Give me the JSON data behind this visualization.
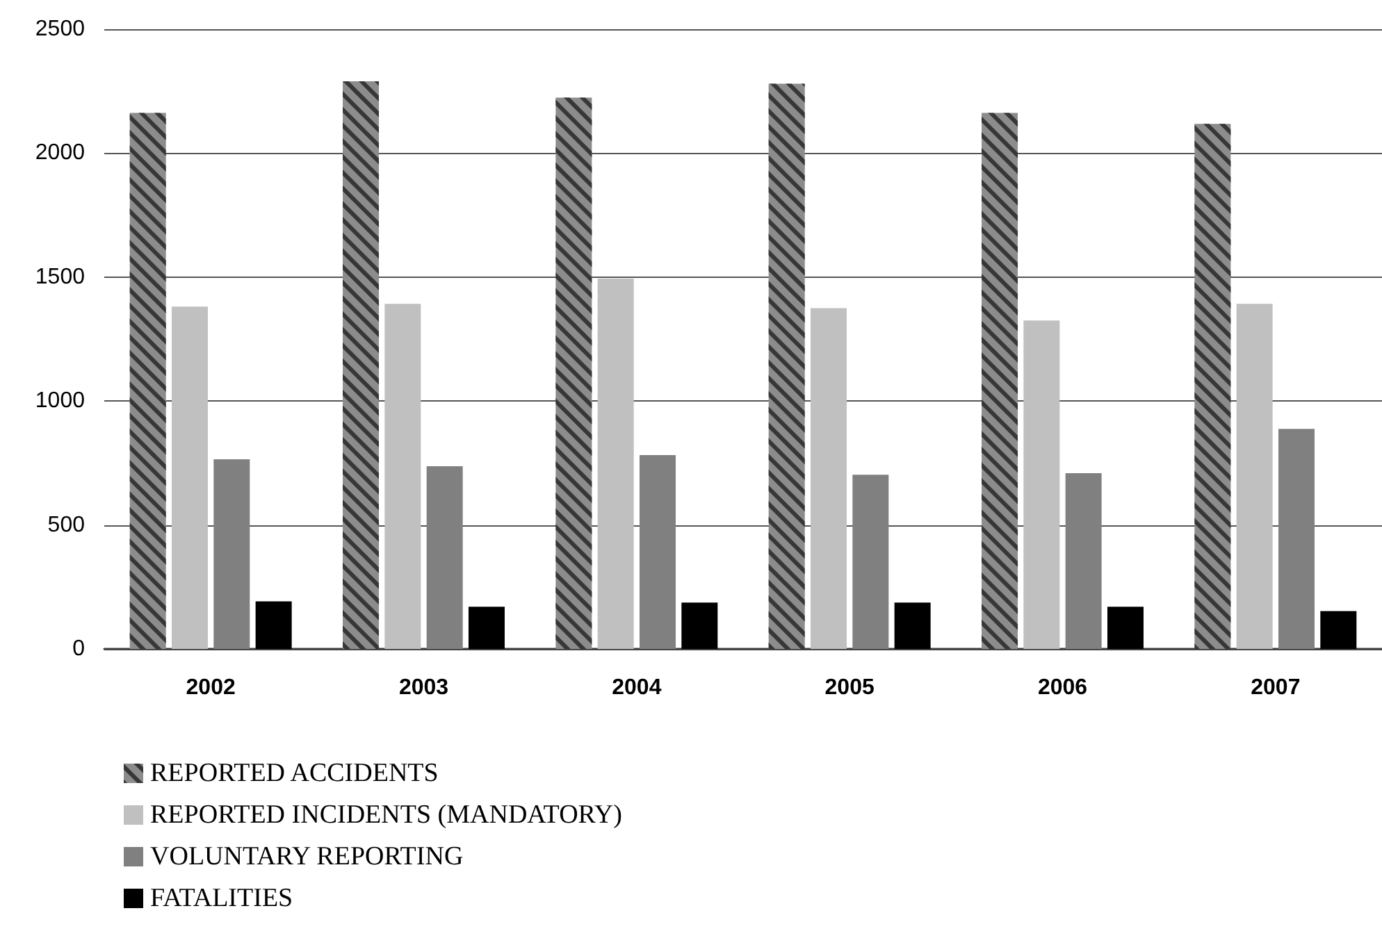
{
  "chart_data": {
    "type": "bar",
    "categories": [
      "2002",
      "2003",
      "2004",
      "2005",
      "2006",
      "2007"
    ],
    "series": [
      {
        "name": "REPORTED ACCIDENTS",
        "color": "#8c8c8c",
        "values": [
          2162,
          2290,
          2224,
          2280,
          2162,
          2118
        ]
      },
      {
        "name": "REPORTED INCIDENTS (MANDATORY)",
        "color": "#c0c0c0",
        "values": [
          1381,
          1392,
          1494,
          1375,
          1325,
          1392
        ]
      },
      {
        "name": "VOLUNTARY REPORTING",
        "color": "#808080",
        "values": [
          765,
          737,
          782,
          703,
          709,
          888
        ]
      },
      {
        "name": "FATALITIES",
        "color": "#000000",
        "values": [
          192,
          170,
          187,
          187,
          170,
          153
        ]
      }
    ],
    "ylim": [
      0,
      2500
    ],
    "yticks": [
      0,
      500,
      1000,
      1500,
      2000,
      2500
    ],
    "grid": "y",
    "legend": "bottom left"
  }
}
